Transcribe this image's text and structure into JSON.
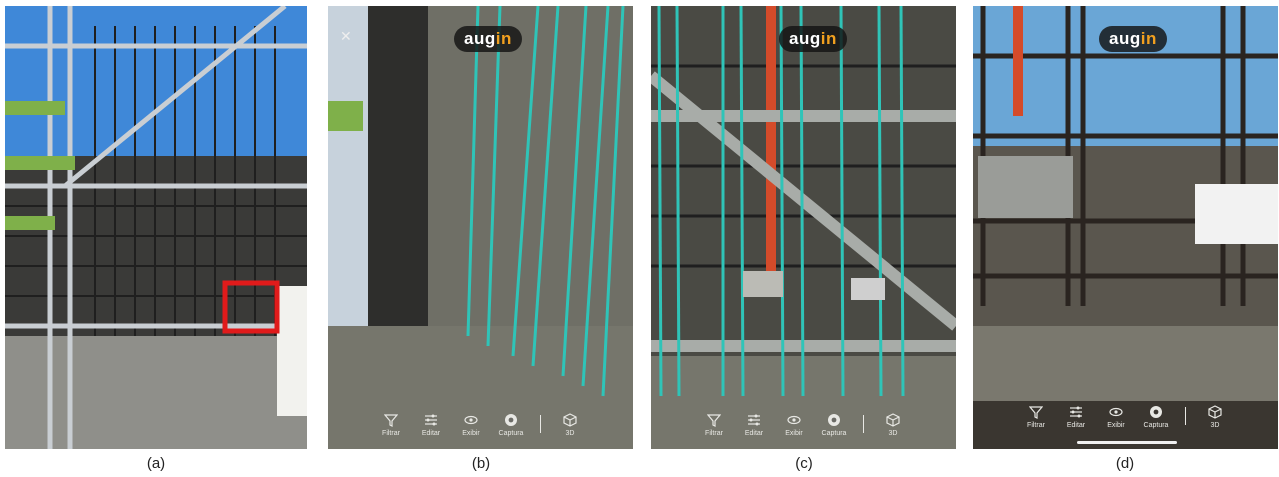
{
  "panels": [
    {
      "caption": "(a)",
      "has_logo": false,
      "highlight_color": "#e01b1b"
    },
    {
      "caption": "(b)",
      "logo": {
        "text_main": "aug",
        "text_accent": "in"
      },
      "close_icon": "close-icon",
      "toolbar": {
        "filtrar": "Filtrar",
        "editar": "Editar",
        "exibir": "Exibir",
        "captura": "Captura",
        "modo3d": "3D"
      }
    },
    {
      "caption": "(c)",
      "logo": {
        "text_main": "aug",
        "text_accent": "in"
      },
      "toolbar": {
        "filtrar": "Filtrar",
        "editar": "Editar",
        "exibir": "Exibir",
        "captura": "Captura",
        "modo3d": "3D"
      }
    },
    {
      "caption": "(d)",
      "logo": {
        "text_main": "aug",
        "text_accent": "in"
      },
      "toolbar": {
        "filtrar": "Filtrar",
        "editar": "Editar",
        "exibir": "Exibir",
        "captura": "Captura",
        "modo3d": "3D"
      }
    }
  ],
  "colors": {
    "rebar_overlay": "#2fc4b8",
    "sky": "#3f88d8",
    "ground_model": "#7a7a6f",
    "logo_accent": "#f2a01f",
    "highlight": "#e01b1b"
  }
}
